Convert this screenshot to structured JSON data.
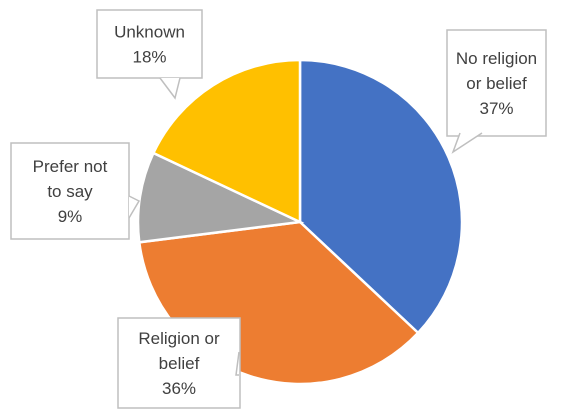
{
  "chart_data": {
    "type": "pie",
    "slices": [
      {
        "label_lines": [
          "No religion",
          "or belief"
        ],
        "value_label": "37%",
        "value": 37,
        "color": "#4472C4"
      },
      {
        "label_lines": [
          "Religion or",
          "belief"
        ],
        "value_label": "36%",
        "value": 36,
        "color": "#ED7D31"
      },
      {
        "label_lines": [
          "Prefer not",
          "to say"
        ],
        "value_label": "9%",
        "value": 9,
        "color": "#A5A5A5"
      },
      {
        "label_lines": [
          "Unknown"
        ],
        "value_label": "18%",
        "value": 18,
        "color": "#FFC000"
      }
    ],
    "start_angle_deg": 0,
    "direction": "clockwise",
    "legend": "none",
    "data_labels": "callouts"
  }
}
